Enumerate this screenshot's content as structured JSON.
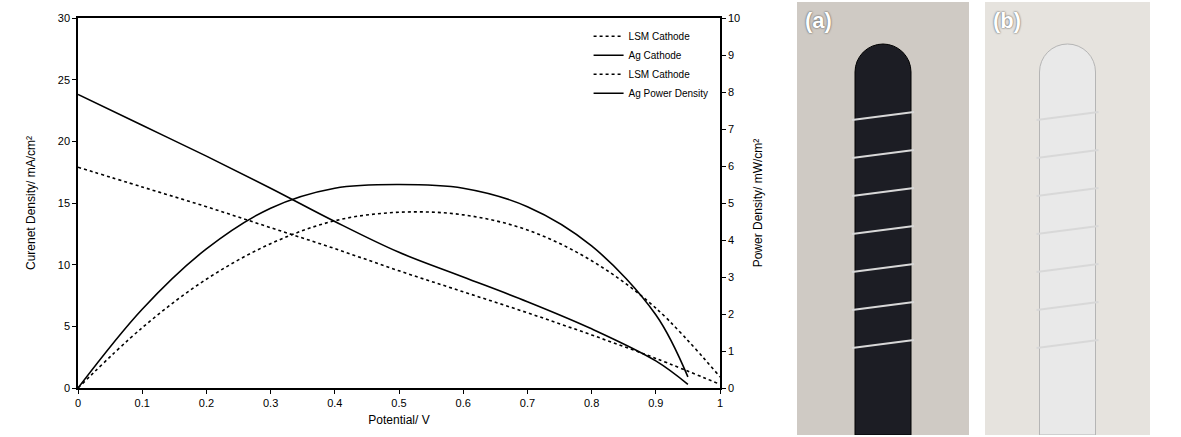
{
  "chart_data": {
    "type": "line",
    "x_label": "Potential/ V",
    "y_label": "Curenet Density/ mA/cm²",
    "y2_label": "Power Density/ mW/cm²",
    "xlim": [
      0,
      1
    ],
    "xticks": [
      0,
      0.1,
      0.2,
      0.3,
      0.4,
      0.5,
      0.6,
      0.7,
      0.8,
      0.9,
      1
    ],
    "ylim": [
      0,
      30
    ],
    "yticks": [
      0,
      5,
      10,
      15,
      20,
      25,
      30
    ],
    "y2lim": [
      0,
      10
    ],
    "y2ticks": [
      0,
      1,
      2,
      3,
      4,
      5,
      6,
      7,
      8,
      9,
      10
    ],
    "grid": false,
    "legend": "top right",
    "series": [
      {
        "name": "LSM Cathode",
        "color": "#000000",
        "line_style": "dotted",
        "x": [
          0,
          0.1,
          0.2,
          0.3,
          0.4,
          0.5,
          0.6,
          0.7,
          0.8,
          0.9,
          1.0
        ],
        "values": [
          17.9,
          16.3,
          14.7,
          13.0,
          11.3,
          9.5,
          7.8,
          6.1,
          4.3,
          2.4,
          0.3
        ]
      },
      {
        "name": "Ag Cathode",
        "color": "#000000",
        "line_style": "solid",
        "x": [
          0,
          0.1,
          0.2,
          0.3,
          0.4,
          0.5,
          0.6,
          0.7,
          0.8,
          0.9,
          0.95
        ],
        "values": [
          23.8,
          21.3,
          18.8,
          16.2,
          13.5,
          11.0,
          9.0,
          7.0,
          4.8,
          2.2,
          0.3
        ]
      },
      {
        "name": "LSM Cathode",
        "color": "#000000",
        "line_style": "dotted",
        "axis": "y2",
        "x": [
          0,
          0.1,
          0.2,
          0.3,
          0.4,
          0.5,
          0.6,
          0.7,
          0.8,
          0.9,
          1.0
        ],
        "values": [
          0,
          1.63,
          2.94,
          3.9,
          4.52,
          4.75,
          4.68,
          4.27,
          3.44,
          2.16,
          0.3
        ]
      },
      {
        "name": "Ag Power Density",
        "color": "#000000",
        "line_style": "solid",
        "axis": "y2",
        "x": [
          0,
          0.1,
          0.2,
          0.3,
          0.4,
          0.5,
          0.6,
          0.7,
          0.8,
          0.9,
          0.95
        ],
        "values": [
          0,
          2.13,
          3.76,
          4.86,
          5.4,
          5.5,
          5.4,
          4.9,
          3.84,
          1.98,
          0.3
        ]
      }
    ]
  },
  "panels": [
    {
      "label": "(a)"
    },
    {
      "label": "(b)"
    }
  ]
}
